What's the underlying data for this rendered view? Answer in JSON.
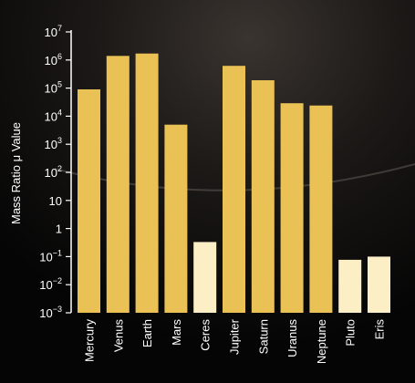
{
  "chart_data": {
    "type": "bar",
    "ylabel": "Mass Ratio μ Value",
    "yscale": "log",
    "ylim": [
      0.001,
      10000000
    ],
    "yticks": [
      {
        "value": 0.001,
        "base": "10",
        "exp": "−3"
      },
      {
        "value": 0.01,
        "base": "10",
        "exp": "−2"
      },
      {
        "value": 0.1,
        "base": "10",
        "exp": "−1"
      },
      {
        "value": 1,
        "base": "1",
        "exp": ""
      },
      {
        "value": 10,
        "base": "10",
        "exp": ""
      },
      {
        "value": 100,
        "base": "10",
        "exp": "2"
      },
      {
        "value": 1000,
        "base": "10",
        "exp": "3"
      },
      {
        "value": 10000,
        "base": "10",
        "exp": "4"
      },
      {
        "value": 100000,
        "base": "10",
        "exp": "5"
      },
      {
        "value": 1000000,
        "base": "10",
        "exp": "6"
      },
      {
        "value": 10000000,
        "base": "10",
        "exp": "7"
      }
    ],
    "categories": [
      "Mercury",
      "Venus",
      "Earth",
      "Mars",
      "Ceres",
      "Jupiter",
      "Saturn",
      "Uranus",
      "Neptune",
      "Pluto",
      "Eris"
    ],
    "values": [
      90000,
      1400000,
      1700000,
      5000,
      0.33,
      620000,
      190000,
      29000,
      24000,
      0.077,
      0.1
    ],
    "colors": {
      "planet": "#e9c154",
      "dwarf": "#fcefc6"
    },
    "bar_color_keys": [
      "planet",
      "planet",
      "planet",
      "planet",
      "dwarf",
      "planet",
      "planet",
      "planet",
      "planet",
      "dwarf",
      "dwarf"
    ]
  },
  "background": "#000000"
}
